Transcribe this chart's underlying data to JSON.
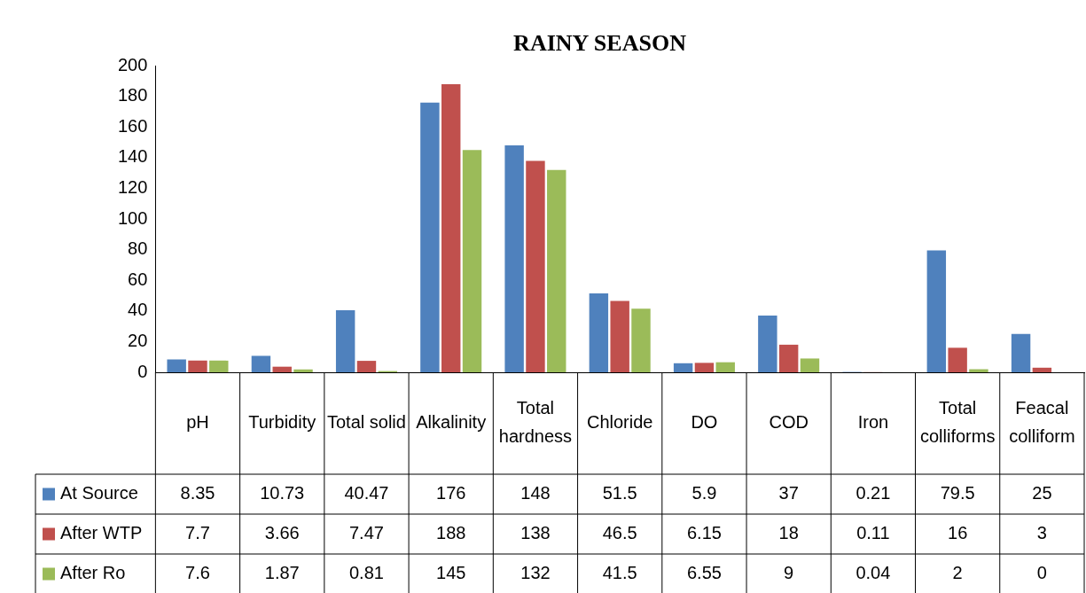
{
  "chart_data": {
    "type": "bar",
    "title": "RAINY SEASON",
    "categories": [
      "pH",
      "Turbidity",
      "Total solid",
      "Alkalinity",
      "Total hardness",
      "Chloride",
      "DO",
      "COD",
      "Iron",
      "Total colliforms",
      "Feacal colliform"
    ],
    "series": [
      {
        "name": "At Source",
        "color": "#4f81bd",
        "values": [
          8.35,
          10.73,
          40.47,
          176,
          148,
          51.5,
          5.9,
          37,
          0.21,
          79.5,
          25
        ]
      },
      {
        "name": "After WTP",
        "color": "#c0504d",
        "values": [
          7.7,
          3.66,
          7.47,
          188,
          138,
          46.5,
          6.15,
          18,
          0.11,
          16,
          3
        ]
      },
      {
        "name": "After Ro",
        "color": "#9bbb59",
        "values": [
          7.6,
          1.87,
          0.81,
          145,
          132,
          41.5,
          6.55,
          9,
          0.04,
          2,
          0
        ]
      }
    ],
    "ylim": [
      0,
      200
    ],
    "yticks": [
      0,
      20,
      40,
      60,
      80,
      100,
      120,
      140,
      160,
      180,
      200
    ],
    "grid": false,
    "legend": "bottom",
    "data_labels": true
  }
}
